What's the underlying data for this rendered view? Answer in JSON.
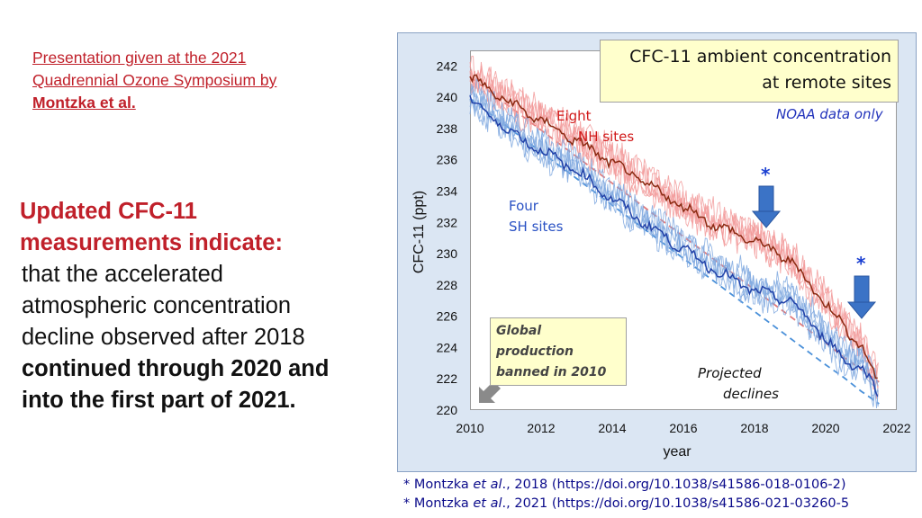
{
  "credit": {
    "line1": "Presentation given at the 2021",
    "line2": "Quadrennial Ozone Symposium  by",
    "line3": "Montzka et al."
  },
  "main_text": {
    "heading_line1": "Updated CFC-11",
    "heading_line2": "measurements indicate:",
    "line1": "that the accelerated",
    "line2": "atmospheric concentration",
    "line3": "decline observed after 2018",
    "line4": "continued through 2020 and",
    "line5": "into the first part of 2021."
  },
  "chart_data": {
    "type": "line",
    "title": "CFC-11 ambient concentration at remote sites",
    "title_line1": "CFC-11 ambient concentration",
    "title_line2": "at remote sites",
    "subtitle": "NOAA data only",
    "xlabel": "year",
    "ylabel": "CFC-11 (ppt)",
    "xlim": [
      2010,
      2022
    ],
    "ylim": [
      220,
      243
    ],
    "x_ticks": [
      "2010",
      "2012",
      "2014",
      "2016",
      "2018",
      "2020",
      "2022"
    ],
    "y_ticks": [
      "220",
      "222",
      "224",
      "226",
      "228",
      "230",
      "232",
      "234",
      "236",
      "238",
      "240",
      "242"
    ],
    "x": [
      2010,
      2011,
      2012,
      2013,
      2014,
      2015,
      2016,
      2017,
      2018,
      2019,
      2020,
      2020.5,
      2021,
      2021.5
    ],
    "series": [
      {
        "name": "Eight NH sites",
        "color": "#d11a1a",
        "values": [
          241.3,
          239.8,
          238.5,
          237.2,
          235.8,
          234.4,
          233.0,
          231.7,
          230.8,
          229.6,
          226.8,
          225.4,
          224.1,
          221.5
        ]
      },
      {
        "name": "Four SH sites",
        "color": "#2a52c4",
        "values": [
          239.9,
          238.0,
          236.6,
          235.3,
          233.5,
          231.8,
          230.3,
          228.8,
          227.6,
          227.0,
          224.6,
          223.2,
          222.8,
          220.9
        ]
      },
      {
        "name": "Projected decline (NH)",
        "color": "#e27a7a",
        "dashed": true,
        "values": [
          241.3,
          239.6,
          237.9,
          236.2,
          234.5,
          232.8,
          231.1,
          229.4,
          227.7,
          226.0,
          224.3,
          223.4,
          222.6,
          221.8
        ]
      },
      {
        "name": "Projected decline (SH)",
        "color": "#4a90d9",
        "dashed": true,
        "values": [
          239.9,
          238.2,
          236.5,
          234.8,
          233.1,
          231.4,
          229.7,
          228.0,
          226.3,
          224.6,
          222.9,
          222.1,
          221.2,
          220.4
        ]
      }
    ],
    "annotations": {
      "nh_line1": "Eight",
      "nh_line2": "NH sites",
      "sh_line1": "Four",
      "sh_line2": "SH sites",
      "ban_line1": "Global",
      "ban_line2": "production",
      "ban_line3": "banned in 2010",
      "projected_line1": "Projected",
      "projected_line2": "declines",
      "star1": "*",
      "star2": "*"
    }
  },
  "references": {
    "ref1_pre": "* Montzka ",
    "ref1_em": "et al",
    "ref1_post": "., 2018 (https://doi.org/10.1038/s41586-018-0106-2)",
    "ref2_pre": "* Montzka ",
    "ref2_em": "et al",
    "ref2_post": "., 2021 (https://doi.org/10.1038/s41586-021-03260-5"
  },
  "colors": {
    "headline_red": "#c0202a",
    "nh_red": "#d11a1a",
    "sh_blue": "#2a52c4",
    "annotation_box": "#ffffcc",
    "panel_bg": "#dbe6f3",
    "arrow_blue": "#3b73c6"
  }
}
